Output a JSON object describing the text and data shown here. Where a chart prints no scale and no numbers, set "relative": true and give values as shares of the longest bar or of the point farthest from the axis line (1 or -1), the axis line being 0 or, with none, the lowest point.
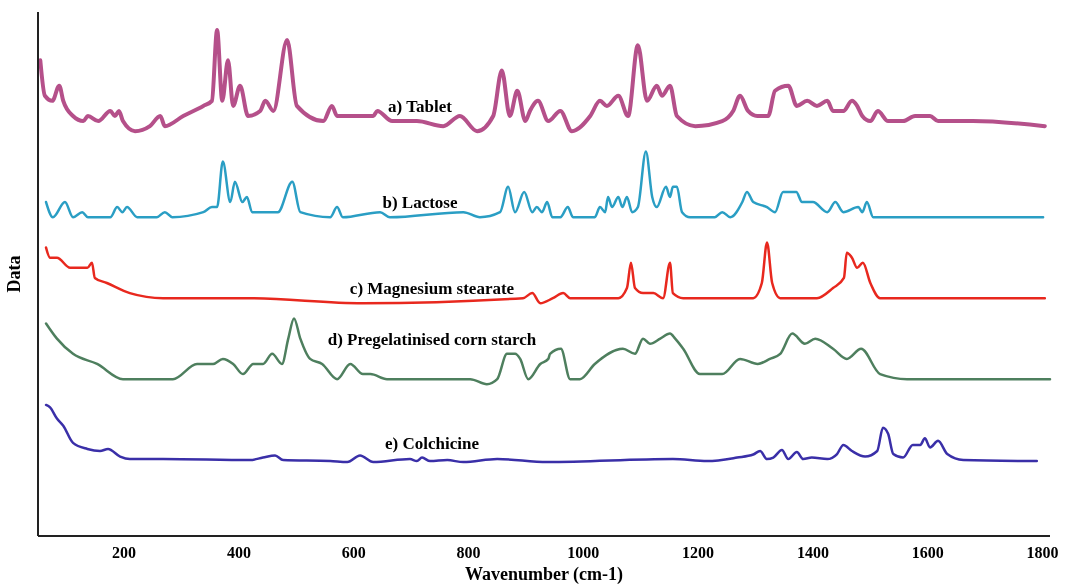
{
  "chart_data": {
    "type": "line",
    "xlabel": "Wavenumber (cm-1)",
    "ylabel": "Data",
    "relative": true,
    "xlim": [
      50,
      1813
    ],
    "xticks": [
      200,
      400,
      600,
      800,
      1000,
      1200,
      1400,
      1600,
      1800
    ],
    "series": [
      {
        "name": "a) Tablet",
        "color": "#b5508a",
        "x": [
          54,
          62,
          75,
          87,
          94,
          111,
          129,
          137,
          155,
          176,
          184,
          191,
          198,
          219,
          245,
          263,
          271,
          303,
          338,
          353,
          362,
          371,
          381,
          390,
          402,
          416,
          437,
          446,
          460,
          484,
          501,
          547,
          562,
          571,
          634,
          641,
          667,
          710,
          756,
          785,
          815,
          843,
          858,
          872,
          885,
          899,
          907,
          921,
          939,
          960,
          980,
          1012,
          1029,
          1041,
          1061,
          1078,
          1095,
          1111,
          1128,
          1137,
          1151,
          1163,
          1195,
          1242,
          1261,
          1273,
          1287,
          1303,
          1322,
          1334,
          1357,
          1372,
          1390,
          1407,
          1425,
          1435,
          1453,
          1468,
          1477,
          1486,
          1500,
          1513,
          1531,
          1557,
          1578,
          1604,
          1618,
          1679,
          1804
        ],
        "values": [
          0.94,
          0.87,
          0.86,
          0.89,
          0.86,
          0.83,
          0.82,
          0.83,
          0.82,
          0.84,
          0.83,
          0.84,
          0.82,
          0.8,
          0.81,
          0.83,
          0.81,
          0.83,
          0.85,
          0.86,
          1.0,
          0.86,
          0.94,
          0.85,
          0.89,
          0.83,
          0.84,
          0.86,
          0.84,
          0.98,
          0.85,
          0.82,
          0.85,
          0.83,
          0.83,
          0.84,
          0.82,
          0.82,
          0.81,
          0.83,
          0.8,
          0.83,
          0.92,
          0.83,
          0.88,
          0.82,
          0.84,
          0.86,
          0.82,
          0.84,
          0.8,
          0.83,
          0.86,
          0.85,
          0.87,
          0.83,
          0.97,
          0.86,
          0.89,
          0.87,
          0.89,
          0.83,
          0.81,
          0.82,
          0.84,
          0.87,
          0.84,
          0.83,
          0.83,
          0.88,
          0.89,
          0.85,
          0.86,
          0.85,
          0.86,
          0.84,
          0.84,
          0.86,
          0.85,
          0.83,
          0.82,
          0.84,
          0.82,
          0.82,
          0.83,
          0.83,
          0.82,
          0.82,
          0.81
        ]
      },
      {
        "name": "b) Lactose",
        "color": "#2a9ec4",
        "x": [
          64,
          76,
          97,
          111,
          127,
          137,
          176,
          188,
          197,
          205,
          223,
          257,
          271,
          284,
          338,
          353,
          362,
          372,
          385,
          393,
          406,
          414,
          423,
          437,
          451,
          468,
          493,
          507,
          559,
          571,
          581,
          646,
          663,
          791,
          820,
          855,
          869,
          881,
          897,
          911,
          919,
          928,
          937,
          946,
          960,
          973,
          982,
          1020,
          1029,
          1038,
          1043,
          1050,
          1061,
          1068,
          1076,
          1085,
          1095,
          1109,
          1120,
          1128,
          1144,
          1151,
          1156,
          1163,
          1172,
          1186,
          1229,
          1242,
          1256,
          1277,
          1285,
          1296,
          1320,
          1334,
          1348,
          1357,
          1371,
          1381,
          1400,
          1425,
          1439,
          1453,
          1479,
          1486,
          1494,
          1505,
          1621,
          1801
        ],
        "values": [
          0.66,
          0.63,
          0.66,
          0.63,
          0.64,
          0.63,
          0.63,
          0.65,
          0.64,
          0.65,
          0.63,
          0.63,
          0.64,
          0.63,
          0.64,
          0.65,
          0.65,
          0.74,
          0.66,
          0.7,
          0.66,
          0.67,
          0.64,
          0.64,
          0.64,
          0.64,
          0.7,
          0.64,
          0.63,
          0.65,
          0.63,
          0.64,
          0.63,
          0.64,
          0.63,
          0.64,
          0.69,
          0.64,
          0.68,
          0.64,
          0.65,
          0.64,
          0.66,
          0.63,
          0.63,
          0.65,
          0.63,
          0.63,
          0.65,
          0.64,
          0.67,
          0.65,
          0.67,
          0.65,
          0.67,
          0.64,
          0.65,
          0.76,
          0.67,
          0.65,
          0.69,
          0.67,
          0.69,
          0.69,
          0.64,
          0.63,
          0.63,
          0.64,
          0.63,
          0.66,
          0.68,
          0.66,
          0.65,
          0.64,
          0.68,
          0.68,
          0.68,
          0.66,
          0.66,
          0.64,
          0.66,
          0.64,
          0.65,
          0.64,
          0.66,
          0.63,
          0.63,
          0.63
        ]
      },
      {
        "name": "c) Magnesium stearate",
        "color": "#e8281e",
        "x": [
          64,
          71,
          83,
          106,
          120,
          136,
          144,
          149,
          170,
          210,
          268,
          407,
          414,
          616,
          895,
          911,
          925,
          947,
          965,
          977,
          1061,
          1076,
          1083,
          1090,
          1104,
          1122,
          1139,
          1151,
          1156,
          1174,
          1200,
          1216,
          1296,
          1311,
          1320,
          1329,
          1343,
          1372,
          1390,
          1407,
          1435,
          1454,
          1459,
          1468,
          1477,
          1487,
          1500,
          1517,
          1564,
          1804
        ],
        "values": [
          0.57,
          0.55,
          0.55,
          0.53,
          0.53,
          0.53,
          0.54,
          0.51,
          0.5,
          0.48,
          0.47,
          0.47,
          0.47,
          0.46,
          0.47,
          0.48,
          0.46,
          0.47,
          0.48,
          0.47,
          0.47,
          0.49,
          0.54,
          0.49,
          0.48,
          0.48,
          0.47,
          0.54,
          0.48,
          0.47,
          0.47,
          0.47,
          0.47,
          0.5,
          0.58,
          0.5,
          0.47,
          0.47,
          0.47,
          0.47,
          0.49,
          0.51,
          0.56,
          0.55,
          0.53,
          0.54,
          0.5,
          0.47,
          0.47,
          0.47
        ]
      },
      {
        "name": "d) Pregelatinised corn starch",
        "color": "#4e7f5e",
        "x": [
          64,
          83,
          111,
          153,
          198,
          245,
          285,
          327,
          355,
          372,
          390,
          407,
          425,
          442,
          458,
          475,
          486,
          496,
          507,
          524,
          545,
          571,
          594,
          616,
          629,
          658,
          710,
          730,
          759,
          780,
          803,
          832,
          850,
          867,
          881,
          890,
          904,
          925,
          939,
          942,
          961,
          977,
          994,
          1020,
          1069,
          1090,
          1104,
          1116,
          1134,
          1151,
          1160,
          1174,
          1203,
          1233,
          1242,
          1273,
          1304,
          1325,
          1343,
          1364,
          1386,
          1404,
          1435,
          1459,
          1484,
          1517,
          1564,
          1813
        ],
        "values": [
          0.42,
          0.39,
          0.36,
          0.34,
          0.31,
          0.31,
          0.31,
          0.34,
          0.34,
          0.35,
          0.34,
          0.32,
          0.34,
          0.34,
          0.36,
          0.34,
          0.39,
          0.43,
          0.39,
          0.35,
          0.34,
          0.31,
          0.34,
          0.32,
          0.32,
          0.31,
          0.31,
          0.31,
          0.31,
          0.31,
          0.31,
          0.3,
          0.31,
          0.36,
          0.36,
          0.35,
          0.31,
          0.34,
          0.35,
          0.36,
          0.37,
          0.31,
          0.31,
          0.34,
          0.37,
          0.36,
          0.39,
          0.38,
          0.39,
          0.4,
          0.39,
          0.37,
          0.32,
          0.32,
          0.32,
          0.35,
          0.34,
          0.35,
          0.36,
          0.4,
          0.38,
          0.39,
          0.37,
          0.35,
          0.37,
          0.32,
          0.31,
          0.31
        ]
      },
      {
        "name": "e) Colchicine",
        "color": "#3a2fa8",
        "x": [
          64,
          71,
          83,
          94,
          111,
          136,
          158,
          172,
          193,
          210,
          268,
          419,
          442,
          463,
          477,
          559,
          589,
          611,
          634,
          698,
          710,
          719,
          733,
          763,
          791,
          850,
          937,
          1156,
          1216,
          1268,
          1296,
          1308,
          1320,
          1331,
          1346,
          1357,
          1372,
          1383,
          1398,
          1425,
          1442,
          1453,
          1468,
          1491,
          1512,
          1522,
          1531,
          1540,
          1557,
          1574,
          1587,
          1595,
          1604,
          1618,
          1634,
          1662,
          1790
        ],
        "values": [
          0.259,
          0.254,
          0.232,
          0.218,
          0.184,
          0.172,
          0.168,
          0.172,
          0.157,
          0.152,
          0.152,
          0.15,
          0.155,
          0.159,
          0.15,
          0.148,
          0.146,
          0.159,
          0.146,
          0.152,
          0.148,
          0.155,
          0.148,
          0.15,
          0.146,
          0.152,
          0.146,
          0.152,
          0.148,
          0.155,
          0.161,
          0.168,
          0.152,
          0.155,
          0.17,
          0.152,
          0.166,
          0.152,
          0.155,
          0.152,
          0.162,
          0.18,
          0.168,
          0.157,
          0.168,
          0.214,
          0.202,
          0.162,
          0.155,
          0.18,
          0.18,
          0.193,
          0.175,
          0.188,
          0.162,
          0.15,
          0.148
        ]
      }
    ]
  }
}
